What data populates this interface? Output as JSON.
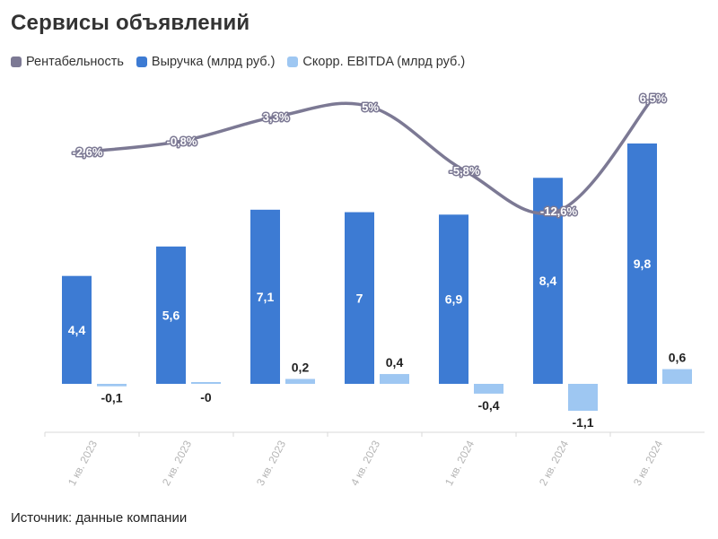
{
  "title": "Сервисы объявлений",
  "source": "Источник: данные компании",
  "legend": [
    {
      "label": "Рентабельность",
      "color": "#7c7994"
    },
    {
      "label": "Выручка (млрд руб.)",
      "color": "#3d7bd3"
    },
    {
      "label": "Скорр. EBITDA (млрд руб.)",
      "color": "#9ec7f2"
    }
  ],
  "chart_data": {
    "type": "bar",
    "categories": [
      "1 кв. 2023",
      "2 кв. 2023",
      "3 кв. 2023",
      "4 кв. 2023",
      "1 кв. 2024",
      "2 кв. 2024",
      "3 кв. 2024"
    ],
    "series": [
      {
        "name": "Выручка (млрд руб.)",
        "type": "bar",
        "color": "#3d7bd3",
        "values": [
          4.4,
          5.6,
          7.1,
          7,
          6.9,
          8.4,
          9.8
        ],
        "labels": [
          "4,4",
          "5,6",
          "7,1",
          "7",
          "6,9",
          "8,4",
          "9,8"
        ]
      },
      {
        "name": "Скорр. EBITDA (млрд руб.)",
        "type": "bar",
        "color": "#9ec7f2",
        "values": [
          -0.1,
          0,
          0.2,
          0.4,
          -0.4,
          -1.1,
          0.6
        ],
        "labels": [
          "-0,1",
          "-0",
          "0,2",
          "0,4",
          "-0,4",
          "-1,1",
          "0,6"
        ]
      },
      {
        "name": "Рентабельность",
        "type": "line",
        "color": "#7c7994",
        "values": [
          -2.6,
          -0.8,
          3.3,
          5,
          -5.8,
          -12.6,
          6.5
        ],
        "labels": [
          "-2,6%",
          "-0,8%",
          "3,3%",
          "5%",
          "-5,8%",
          "-12,6%",
          "6,5%"
        ]
      }
    ],
    "legend_position": "top-left",
    "grid": false
  }
}
